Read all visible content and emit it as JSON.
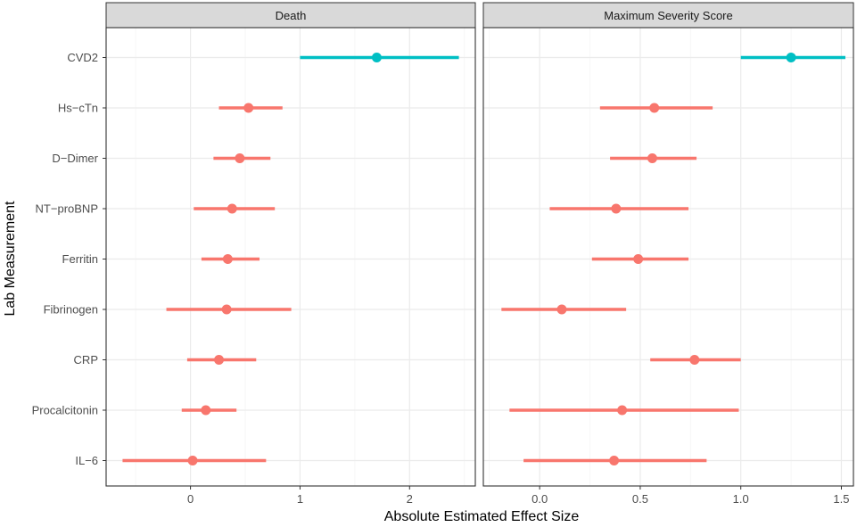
{
  "chart_data": {
    "type": "forest",
    "xlabel": "Absolute Estimated Effect Size",
    "ylabel": "Lab Measurement",
    "categories": [
      "CVD2",
      "Hs−cTn",
      "D−Dimer",
      "NT−proBNP",
      "Ferritin",
      "Fibrinogen",
      "CRP",
      "Procalcitonin",
      "IL−6"
    ],
    "colors": {
      "highlight": "#00bfc4",
      "default": "#f8766d",
      "strip_fill": "#d9d9d9",
      "grid_major": "#ebebeb",
      "grid_minor": "#f5f5f5",
      "frame": "#333333"
    },
    "panels": [
      {
        "name": "Death",
        "xlim": [
          -0.77,
          2.6
        ],
        "xticks": [
          0,
          1,
          2
        ],
        "xtick_labels": [
          "0",
          "1",
          "2"
        ],
        "points": [
          {
            "label": "CVD2",
            "est": 1.7,
            "low": 1.0,
            "high": 2.45,
            "group": "highlight"
          },
          {
            "label": "Hs−cTn",
            "est": 0.53,
            "low": 0.26,
            "high": 0.84,
            "group": "default"
          },
          {
            "label": "D−Dimer",
            "est": 0.45,
            "low": 0.21,
            "high": 0.73,
            "group": "default"
          },
          {
            "label": "NT−proBNP",
            "est": 0.38,
            "low": 0.03,
            "high": 0.77,
            "group": "default"
          },
          {
            "label": "Ferritin",
            "est": 0.34,
            "low": 0.1,
            "high": 0.63,
            "group": "default"
          },
          {
            "label": "Fibrinogen",
            "est": 0.33,
            "low": -0.22,
            "high": 0.92,
            "group": "default"
          },
          {
            "label": "CRP",
            "est": 0.26,
            "low": -0.03,
            "high": 0.6,
            "group": "default"
          },
          {
            "label": "Procalcitonin",
            "est": 0.14,
            "low": -0.08,
            "high": 0.42,
            "group": "default"
          },
          {
            "label": "IL−6",
            "est": 0.02,
            "low": -0.62,
            "high": 0.69,
            "group": "default"
          }
        ]
      },
      {
        "name": "Maximum Severity Score",
        "xlim": [
          -0.28,
          1.56
        ],
        "xticks": [
          0,
          0.5,
          1,
          1.5
        ],
        "xtick_labels": [
          "0.0",
          "0.5",
          "1.0",
          "1.5"
        ],
        "points": [
          {
            "label": "CVD2",
            "est": 1.25,
            "low": 1.0,
            "high": 1.52,
            "group": "highlight"
          },
          {
            "label": "Hs−cTn",
            "est": 0.57,
            "low": 0.3,
            "high": 0.86,
            "group": "default"
          },
          {
            "label": "D−Dimer",
            "est": 0.56,
            "low": 0.35,
            "high": 0.78,
            "group": "default"
          },
          {
            "label": "NT−proBNP",
            "est": 0.38,
            "low": 0.05,
            "high": 0.74,
            "group": "default"
          },
          {
            "label": "Ferritin",
            "est": 0.49,
            "low": 0.26,
            "high": 0.74,
            "group": "default"
          },
          {
            "label": "Fibrinogen",
            "est": 0.11,
            "low": -0.19,
            "high": 0.43,
            "group": "default"
          },
          {
            "label": "CRP",
            "est": 0.77,
            "low": 0.55,
            "high": 1.0,
            "group": "default"
          },
          {
            "label": "Procalcitonin",
            "est": 0.41,
            "low": -0.15,
            "high": 0.99,
            "group": "default"
          },
          {
            "label": "IL−6",
            "est": 0.37,
            "low": -0.08,
            "high": 0.83,
            "group": "default"
          }
        ]
      }
    ],
    "grid": true,
    "legend": "none"
  }
}
